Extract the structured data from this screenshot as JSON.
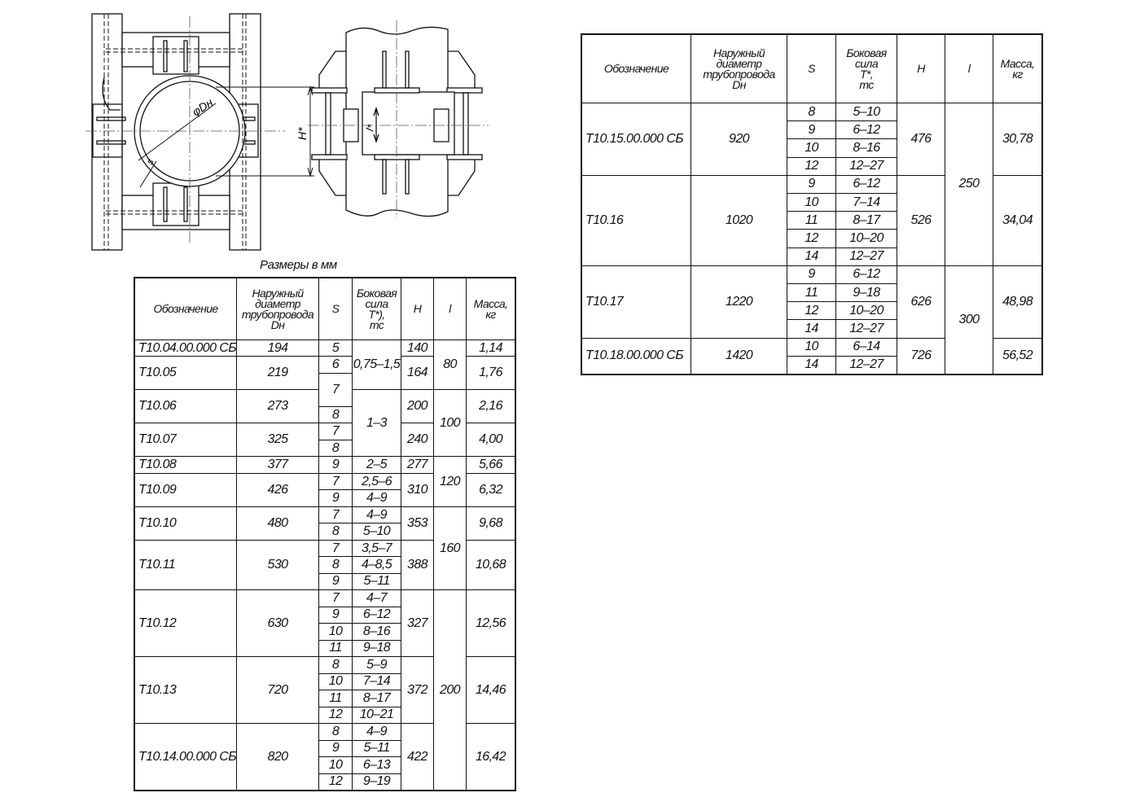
{
  "drawing": {
    "labels": {
      "diameter": "φDн",
      "height": "H*",
      "thickness": "s",
      "length": "l*"
    }
  },
  "left_table": {
    "caption": "Размеры в мм",
    "headers": [
      [
        "Обозначение"
      ],
      [
        "Наружный",
        "диаметр",
        "трубопровода",
        "Dн"
      ],
      [
        "S"
      ],
      [
        "Боковая",
        "сила",
        "Т*),",
        "тс"
      ],
      [
        "H"
      ],
      [
        "l"
      ],
      [
        "Масса,",
        "кг"
      ]
    ],
    "rows": [
      {
        "designation": "Т10.04.00.000 СБ",
        "dn": "194",
        "mass": "1,14",
        "span": 1
      },
      {
        "designation": "Т10.05",
        "dn": "219",
        "mass": "1,76",
        "span": 2
      },
      {
        "designation": "Т10.06",
        "dn": "273",
        "mass": "2,16",
        "span": 2
      },
      {
        "designation": "Т10.07",
        "dn": "325",
        "mass": "4,00",
        "span": 2
      },
      {
        "designation": "Т10.08",
        "dn": "377",
        "mass": "5,66",
        "span": 1
      },
      {
        "designation": "Т10.09",
        "dn": "426",
        "mass": "6,32",
        "span": 2
      },
      {
        "designation": "Т10.10",
        "dn": "480",
        "mass": "9,68",
        "span": 2
      },
      {
        "designation": "Т10.11",
        "dn": "530",
        "mass": "10,68",
        "span": 3
      },
      {
        "designation": "Т10.12",
        "dn": "630",
        "mass": "12,56",
        "span": 4
      },
      {
        "designation": "Т10.13",
        "dn": "720",
        "mass": "14,46",
        "span": 4
      },
      {
        "designation": "Т10.14.00.000 СБ",
        "dn": "820",
        "mass": "16,42",
        "span": 4
      }
    ],
    "s": [
      {
        "v": "5",
        "span": 1
      },
      {
        "v": "6",
        "span": 1
      },
      {
        "v": "7",
        "span": 2
      },
      {
        "v": "8",
        "span": 1
      },
      {
        "v": "7",
        "span": 1
      },
      {
        "v": "8",
        "span": 1
      },
      {
        "v": "9",
        "span": 1
      },
      {
        "v": "7",
        "span": 1
      },
      {
        "v": "9",
        "span": 1
      },
      {
        "v": "7",
        "span": 1
      },
      {
        "v": "8",
        "span": 1
      },
      {
        "v": "7",
        "span": 1
      },
      {
        "v": "8",
        "span": 1
      },
      {
        "v": "9",
        "span": 1
      },
      {
        "v": "7",
        "span": 1
      },
      {
        "v": "9",
        "span": 1
      },
      {
        "v": "10",
        "span": 1
      },
      {
        "v": "11",
        "span": 1
      },
      {
        "v": "8",
        "span": 1
      },
      {
        "v": "10",
        "span": 1
      },
      {
        "v": "11",
        "span": 1
      },
      {
        "v": "12",
        "span": 1
      },
      {
        "v": "8",
        "span": 1
      },
      {
        "v": "9",
        "span": 1
      },
      {
        "v": "10",
        "span": 1
      },
      {
        "v": "12",
        "span": 1
      }
    ],
    "force": [
      {
        "v": "0,75–1,5",
        "span": 3
      },
      {
        "v": "1–3",
        "span": 4
      },
      {
        "v": "2–5",
        "span": 1
      },
      {
        "v": "2,5–6",
        "span": 1
      },
      {
        "v": "4–9",
        "span": 1
      },
      {
        "v": "4–9",
        "span": 1
      },
      {
        "v": "5–10",
        "span": 1
      },
      {
        "v": "3,5–7",
        "span": 1
      },
      {
        "v": "4–8,5",
        "span": 1
      },
      {
        "v": "5–11",
        "span": 1
      },
      {
        "v": "4–7",
        "span": 1
      },
      {
        "v": "6–12",
        "span": 1
      },
      {
        "v": "8–16",
        "span": 1
      },
      {
        "v": "9–18",
        "span": 1
      },
      {
        "v": "5–9",
        "span": 1
      },
      {
        "v": "7–14",
        "span": 1
      },
      {
        "v": "8–17",
        "span": 1
      },
      {
        "v": "10–21",
        "span": 1
      },
      {
        "v": "4–9",
        "span": 1
      },
      {
        "v": "5–11",
        "span": 1
      },
      {
        "v": "6–13",
        "span": 1
      },
      {
        "v": "9–19",
        "span": 1
      }
    ],
    "h": [
      {
        "v": "140",
        "span": 1
      },
      {
        "v": "164",
        "span": 2
      },
      {
        "v": "200",
        "span": 2
      },
      {
        "v": "240",
        "span": 2
      },
      {
        "v": "277",
        "span": 1
      },
      {
        "v": "310",
        "span": 2
      },
      {
        "v": "353",
        "span": 2
      },
      {
        "v": "388",
        "span": 3
      },
      {
        "v": "327",
        "span": 4
      },
      {
        "v": "372",
        "span": 4
      },
      {
        "v": "422",
        "span": 4
      }
    ],
    "l": [
      {
        "v": "80",
        "span": 3
      },
      {
        "v": "100",
        "span": 4
      },
      {
        "v": "120",
        "span": 3
      },
      {
        "v": "160",
        "span": 5
      },
      {
        "v": "200",
        "span": 12
      }
    ]
  },
  "right_table": {
    "headers": [
      [
        "Обозначение"
      ],
      [
        "Наружный",
        "диаметр",
        "трубопровода",
        "Dн"
      ],
      [
        "S"
      ],
      [
        "Боковая",
        "сила",
        "Т*,",
        "тс"
      ],
      [
        "H"
      ],
      [
        "l"
      ],
      [
        "Масса,",
        "кг"
      ]
    ],
    "rows": [
      {
        "designation": "Т10.15.00.000 СБ",
        "dn": "920",
        "mass": "30,78",
        "span": 4
      },
      {
        "designation": "Т10.16",
        "dn": "1020",
        "mass": "34,04",
        "span": 5
      },
      {
        "designation": "Т10.17",
        "dn": "1220",
        "mass": "48,98",
        "span": 4
      },
      {
        "designation": "Т10.18.00.000 СБ",
        "dn": "1420",
        "mass": "56,52",
        "span": 2
      }
    ],
    "s": [
      {
        "v": "8",
        "span": 1
      },
      {
        "v": "9",
        "span": 1
      },
      {
        "v": "10",
        "span": 1
      },
      {
        "v": "12",
        "span": 1
      },
      {
        "v": "9",
        "span": 1
      },
      {
        "v": "10",
        "span": 1
      },
      {
        "v": "11",
        "span": 1
      },
      {
        "v": "12",
        "span": 1
      },
      {
        "v": "14",
        "span": 1
      },
      {
        "v": "9",
        "span": 1
      },
      {
        "v": "11",
        "span": 1
      },
      {
        "v": "12",
        "span": 1
      },
      {
        "v": "14",
        "span": 1
      },
      {
        "v": "10",
        "span": 1
      },
      {
        "v": "14",
        "span": 1
      }
    ],
    "force": [
      {
        "v": "5–10",
        "span": 1
      },
      {
        "v": "6–12",
        "span": 1
      },
      {
        "v": "8–16",
        "span": 1
      },
      {
        "v": "12–27",
        "span": 1
      },
      {
        "v": "6–12",
        "span": 1
      },
      {
        "v": "7–14",
        "span": 1
      },
      {
        "v": "8–17",
        "span": 1
      },
      {
        "v": "10–20",
        "span": 1
      },
      {
        "v": "12–27",
        "span": 1
      },
      {
        "v": "6–12",
        "span": 1
      },
      {
        "v": "9–18",
        "span": 1
      },
      {
        "v": "10–20",
        "span": 1
      },
      {
        "v": "12–27",
        "span": 1
      },
      {
        "v": "6–14",
        "span": 1
      },
      {
        "v": "12–27",
        "span": 1
      }
    ],
    "h": [
      {
        "v": "476",
        "span": 4
      },
      {
        "v": "526",
        "span": 5
      },
      {
        "v": "626",
        "span": 4
      },
      {
        "v": "726",
        "span": 2
      }
    ],
    "l": [
      {
        "v": "250",
        "span": 9
      },
      {
        "v": "300",
        "span": 6
      }
    ]
  }
}
